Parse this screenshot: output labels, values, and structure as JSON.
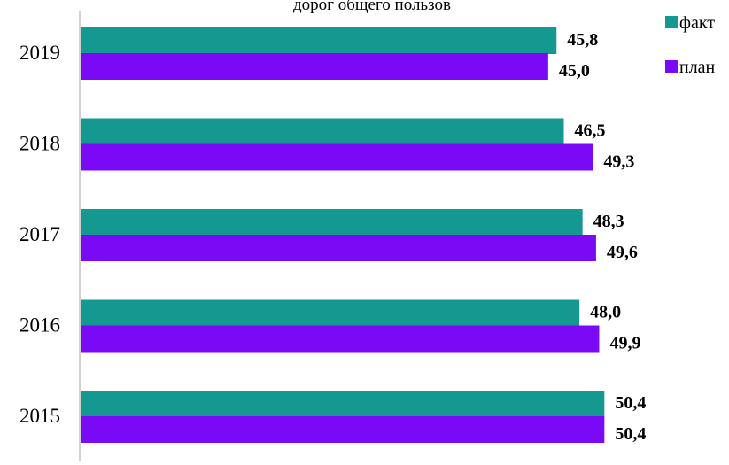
{
  "chart_data": {
    "type": "bar",
    "orientation": "horizontal",
    "title": "дорог общего пользов",
    "categories": [
      "2019",
      "2018",
      "2017",
      "2016",
      "2015"
    ],
    "series": [
      {
        "name": "факт",
        "color": "#149890",
        "values": [
          45.8,
          46.5,
          48.3,
          48.0,
          50.4
        ],
        "labels": [
          "45,8",
          "46,5",
          "48,3",
          "48,0",
          "50,4"
        ]
      },
      {
        "name": "план",
        "color": "#7A0AF5",
        "values": [
          45.0,
          49.3,
          49.6,
          49.9,
          50.4
        ],
        "labels": [
          "45,0",
          "49,3",
          "49,6",
          "49,9",
          "50,4"
        ]
      }
    ],
    "xlim": [
      0,
      52.5
    ],
    "grid": false,
    "legend_position": "top-right"
  }
}
